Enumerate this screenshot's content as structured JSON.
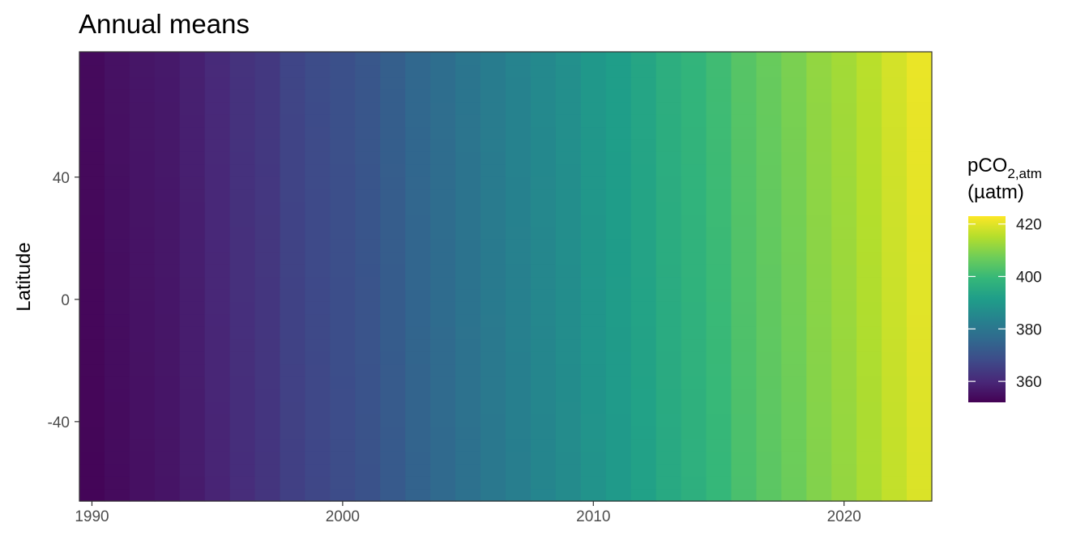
{
  "chart_data": {
    "type": "heatmap",
    "title": "Annual means",
    "xlabel": "",
    "ylabel": "Latitude",
    "x": [
      1990,
      1991,
      1992,
      1993,
      1994,
      1995,
      1996,
      1997,
      1998,
      1999,
      2000,
      2001,
      2002,
      2003,
      2004,
      2005,
      2006,
      2007,
      2008,
      2009,
      2010,
      2011,
      2012,
      2013,
      2014,
      2015,
      2016,
      2017,
      2018,
      2019,
      2020,
      2021,
      2022,
      2023
    ],
    "x_ticks": [
      1990,
      2000,
      2010,
      2020
    ],
    "x_tick_labels": [
      "1990",
      "2000",
      "2010",
      "2020"
    ],
    "ylim": [
      -66,
      81
    ],
    "y_ticks": [
      -40,
      0,
      40
    ],
    "y_tick_labels": [
      "-40",
      "0",
      "40"
    ],
    "values_north": [
      353.9,
      355.3,
      356.2,
      356.8,
      358.3,
      360.3,
      362.4,
      363.7,
      366.7,
      368.3,
      369.5,
      371.1,
      373.3,
      375.8,
      377.6,
      379.8,
      381.9,
      383.8,
      385.6,
      387.4,
      389.9,
      391.6,
      393.8,
      396.5,
      398.5,
      400.9,
      404.1,
      406.4,
      408.7,
      411.4,
      413.2,
      415.7,
      418.5,
      421.0
    ],
    "values_south": [
      352.8,
      354.0,
      355.0,
      355.9,
      357.3,
      359.1,
      361.0,
      362.8,
      365.4,
      367.0,
      368.4,
      369.9,
      371.9,
      374.3,
      376.2,
      378.3,
      380.4,
      382.3,
      384.3,
      386.1,
      388.3,
      390.2,
      392.3,
      394.8,
      396.9,
      399.2,
      402.3,
      404.7,
      406.9,
      409.5,
      411.5,
      413.9,
      416.6,
      419.2
    ],
    "colorbar": {
      "title_main": "pCO",
      "title_subscript": "2,atm",
      "title_units": "(µatm)",
      "range": [
        352,
        423
      ],
      "ticks": [
        360,
        380,
        400,
        420
      ],
      "tick_labels": [
        "360",
        "380",
        "400",
        "420"
      ],
      "colors": [
        "#440154",
        "#482878",
        "#3e4a89",
        "#31688e",
        "#26828e",
        "#1f9e89",
        "#35b779",
        "#6dcd59",
        "#b4de2c",
        "#fde725"
      ]
    },
    "panel_border": "#333333"
  }
}
